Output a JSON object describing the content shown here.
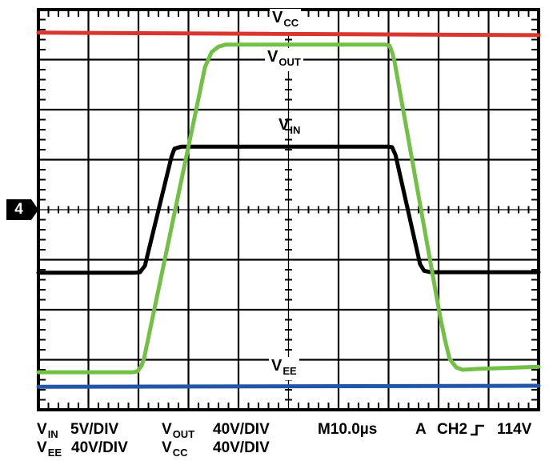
{
  "marker": {
    "channel": "4"
  },
  "trace_labels": {
    "vcc": {
      "main": "V",
      "sub": "CC"
    },
    "vout": {
      "main": "V",
      "sub": "OUT"
    },
    "vin": {
      "main": "V",
      "sub": "IN"
    },
    "vee": {
      "main": "V",
      "sub": "EE"
    }
  },
  "readout": {
    "row1": {
      "vin": {
        "main": "V",
        "sub": "IN"
      },
      "vin_scale": "5V/DIV",
      "vout": {
        "main": "V",
        "sub": "OUT"
      },
      "vout_scale": "40V/DIV",
      "timebase": "M10.0µs",
      "trigger_mode": "A",
      "trigger_source": "CH2",
      "trigger_level": "114V"
    },
    "row2": {
      "vee": {
        "main": "V",
        "sub": "EE"
      },
      "vee_scale": "40V/DIV",
      "vcc": {
        "main": "V",
        "sub": "CC"
      },
      "vcc_scale": "40V/DIV"
    }
  },
  "chart_data": {
    "type": "line",
    "style": "oscilloscope-graticule",
    "x_axis": {
      "divisions": 10,
      "minor_per_div": 5,
      "timebase": "M10.0µs"
    },
    "y_axis": {
      "divisions": 8,
      "minor_per_div": 5
    },
    "grid": true,
    "trigger": {
      "mode": "A",
      "source": "CH2",
      "slope": "rising",
      "level": "114V"
    },
    "channel_marker": {
      "label": "4",
      "y_div": 4
    },
    "series": [
      {
        "name": "VIN",
        "scale": "5V/DIV",
        "color": "#000000",
        "width": 5,
        "points_div": [
          [
            0,
            5.26
          ],
          [
            1.92,
            5.26
          ],
          [
            2.03,
            5.25
          ],
          [
            2.13,
            5.12
          ],
          [
            2.66,
            2.94
          ],
          [
            2.72,
            2.78
          ],
          [
            2.85,
            2.74
          ],
          [
            7.01,
            2.74
          ],
          [
            7.07,
            2.75
          ],
          [
            7.14,
            2.91
          ],
          [
            7.63,
            5.09
          ],
          [
            7.71,
            5.22
          ],
          [
            7.84,
            5.25
          ],
          [
            10,
            5.25
          ]
        ]
      },
      {
        "name": "VCC",
        "scale": "40V/DIV",
        "color": "#d93630",
        "width": 5,
        "points_div": [
          [
            0,
            0.46
          ],
          [
            10,
            0.51
          ]
        ]
      },
      {
        "name": "VEE",
        "scale": "40V/DIV",
        "color": "#2356a6",
        "width": 5,
        "points_div": [
          [
            0,
            7.54
          ],
          [
            10,
            7.52
          ]
        ]
      },
      {
        "name": "VOUT",
        "scale": "40V/DIV",
        "color": "#72c045",
        "width": 5,
        "points_div": [
          [
            0,
            7.25
          ],
          [
            1.89,
            7.25
          ],
          [
            1.98,
            7.23
          ],
          [
            2.06,
            7.12
          ],
          [
            2.11,
            6.98
          ],
          [
            3.22,
            1.68
          ],
          [
            3.33,
            1.15
          ],
          [
            3.46,
            0.85
          ],
          [
            3.6,
            0.74
          ],
          [
            3.74,
            0.7
          ],
          [
            6.94,
            0.7
          ],
          [
            7.02,
            0.72
          ],
          [
            7.07,
            0.85
          ],
          [
            7.12,
            1.04
          ],
          [
            8.03,
            6.13
          ],
          [
            8.13,
            6.61
          ],
          [
            8.22,
            6.98
          ],
          [
            8.35,
            7.15
          ],
          [
            8.48,
            7.2
          ],
          [
            8.83,
            7.18
          ],
          [
            10,
            7.14
          ]
        ]
      }
    ]
  }
}
